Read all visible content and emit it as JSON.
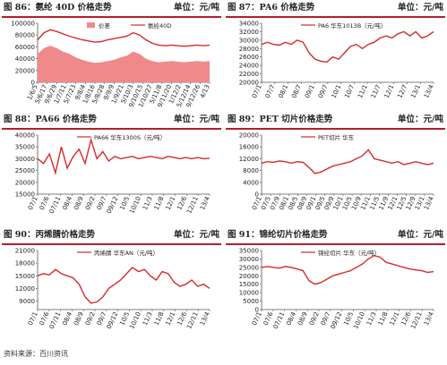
{
  "source": "资料来源：百川资讯",
  "colors": {
    "line": "#d62a2a",
    "area": "#f08a8a",
    "rule": "#b0202a"
  },
  "chart_data": [
    {
      "type": "area",
      "panel": "p86",
      "header": "图 86：氨纶 40D 价格走势",
      "unit": "单位：元/吨",
      "ylim": [
        0,
        100000
      ],
      "yticks": [
        0,
        20000,
        40000,
        60000,
        80000,
        100000
      ],
      "xticks": [
        "1/6/5",
        "5/6/17",
        "9/6/29",
        "1/7/11",
        "5/7/23",
        "9/8/4",
        "1/8/16",
        "5/8/28",
        "9/9/9",
        "1/9/21",
        "5/10/3",
        "9/10/15",
        "1/10/27",
        "5/11/8",
        "9/11/20",
        "1/12/2",
        "5/12/14",
        "9/12/26",
        "4/13"
      ],
      "series": [
        {
          "name": "价差",
          "kind": "area",
          "values": [
            48000,
            58000,
            62000,
            58000,
            52000,
            48000,
            42000,
            38000,
            35000,
            33000,
            34000,
            36000,
            38000,
            42000,
            45000,
            52000,
            48000,
            40000,
            36000,
            34000,
            35000,
            36000,
            35000,
            34000,
            35000,
            36000,
            35000,
            36000
          ]
        },
        {
          "name": "氨纶40D",
          "kind": "line",
          "values": [
            72000,
            84000,
            89000,
            86000,
            82000,
            78000,
            75000,
            72000,
            70000,
            68000,
            69000,
            72000,
            74000,
            76000,
            78000,
            84000,
            80000,
            72000,
            66000,
            63000,
            62000,
            63000,
            62000,
            61000,
            62000,
            63000,
            62000,
            63000
          ]
        }
      ]
    },
    {
      "type": "line",
      "panel": "p87",
      "header": "图 87：PA6 价格走势",
      "unit": "单位：元/吨",
      "ylim": [
        20000,
        34000
      ],
      "yticks": [
        20000,
        22000,
        24000,
        26000,
        28000,
        30000,
        32000,
        34000
      ],
      "xticks": [
        "07/1",
        "07/7",
        "08/1",
        "08/7",
        "09/1",
        "09/7",
        "10/1",
        "10/7",
        "11/1",
        "11/7",
        "12/1",
        "12/7",
        "13/1",
        "13/4"
      ],
      "series": [
        {
          "name": "PA6 华东1013B（元/吨）",
          "values": [
            29000,
            29500,
            29000,
            28800,
            29500,
            29000,
            30000,
            29500,
            27000,
            25500,
            25000,
            24800,
            26000,
            25500,
            27000,
            28500,
            29000,
            28000,
            29000,
            29500,
            30500,
            31000,
            30500,
            31500,
            32000,
            31000,
            32000,
            30500,
            31000,
            32000
          ]
        }
      ]
    },
    {
      "type": "line",
      "panel": "p88",
      "header": "图 88：PA66 价格走势",
      "unit": "单位：元/吨",
      "ylim": [
        15000,
        40000
      ],
      "yticks": [
        15000,
        20000,
        25000,
        30000,
        35000,
        40000
      ],
      "xticks": [
        "07/1",
        "07/6",
        "07/11",
        "08/4",
        "08/9",
        "09/2",
        "09/7",
        "09/12",
        "10/5",
        "10/10",
        "11/3",
        "11/8",
        "12/1",
        "12/6",
        "12/11",
        "13/4"
      ],
      "series": [
        {
          "name": "PA66 华东1300S（元/吨）",
          "values": [
            30000,
            28000,
            32000,
            24000,
            35000,
            26000,
            31000,
            34000,
            28000,
            38000,
            30000,
            33000,
            29000,
            31000,
            30000,
            30500,
            31000,
            30000,
            30500,
            31000,
            30500,
            30000,
            31000,
            30500,
            30000,
            30500,
            30000,
            30500,
            30000,
            30200
          ]
        }
      ]
    },
    {
      "type": "line",
      "panel": "p89",
      "header": "图 89：PET 切片价格走势",
      "unit": "单位：元/吨",
      "ylim": [
        0,
        20000
      ],
      "yticks": [
        0,
        4000,
        8000,
        12000,
        16000,
        20000
      ],
      "xticks": [
        "07/1",
        "07/5",
        "07/9",
        "08/1",
        "08/5",
        "08/9",
        "09/1",
        "09/5",
        "09/9",
        "10/1",
        "10/5",
        "10/9",
        "11/1",
        "11/5",
        "11/9",
        "12/1",
        "12/5",
        "12/9",
        "13/1",
        "13/4"
      ],
      "series": [
        {
          "name": "PET切片 华东",
          "values": [
            10500,
            11000,
            10800,
            11200,
            11000,
            10500,
            11000,
            10800,
            9000,
            7000,
            7500,
            8500,
            9500,
            10000,
            10500,
            11000,
            12000,
            13000,
            15000,
            12000,
            11500,
            11000,
            10500,
            11000,
            10000,
            10500,
            11000,
            10500,
            10000,
            10500
          ]
        }
      ]
    },
    {
      "type": "line",
      "panel": "p90",
      "header": "图 90：丙烯腈价格走势",
      "unit": "单位：元/吨",
      "ylim": [
        7000,
        21000
      ],
      "yticks": [
        9000,
        12000,
        15000,
        18000,
        21000
      ],
      "xticks": [
        "07/1",
        "07/6",
        "07/11",
        "08/4",
        "08/9",
        "09/2",
        "09/7",
        "09/12",
        "10/5",
        "10/10",
        "11/3",
        "11/8",
        "12/1",
        "12/6",
        "12/11",
        "13/4"
      ],
      "series": [
        {
          "name": "丙烯腈 华东AN（元/吨）",
          "values": [
            15000,
            15500,
            15200,
            16500,
            15500,
            15000,
            14500,
            13000,
            10000,
            8500,
            8800,
            10000,
            12000,
            13000,
            14000,
            15500,
            17000,
            16000,
            16500,
            15000,
            14000,
            16000,
            15500,
            13500,
            12500,
            13000,
            14000,
            12500,
            13000,
            12000
          ]
        }
      ]
    },
    {
      "type": "line",
      "panel": "p91",
      "header": "图 91：锦纶切片价格走势",
      "unit": "单位：元/吨",
      "ylim": [
        0,
        35000
      ],
      "yticks": [
        0,
        5000,
        10000,
        15000,
        20000,
        25000,
        30000,
        35000
      ],
      "xticks": [
        "07/1",
        "07/6",
        "07/11",
        "08/4",
        "08/9",
        "09/2",
        "09/7",
        "09/12",
        "10/5",
        "10/10",
        "11/3",
        "11/8",
        "12/1",
        "12/6",
        "12/11",
        "13/4"
      ],
      "series": [
        {
          "name": "锦纶切片 华东（元/吨）",
          "values": [
            25000,
            25500,
            25000,
            24500,
            25500,
            25000,
            24000,
            23000,
            17000,
            15000,
            16000,
            18000,
            20000,
            21000,
            22000,
            23000,
            25000,
            27000,
            30000,
            32000,
            31000,
            28000,
            27000,
            26000,
            25000,
            24000,
            23500,
            23000,
            22000,
            22500
          ]
        }
      ]
    }
  ]
}
